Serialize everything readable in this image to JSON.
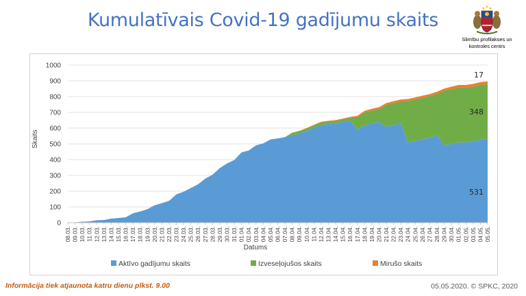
{
  "header": {
    "title": "Kumulatīvais Covid-19 gadījumu skaits",
    "logo_line1": "Slimību profilakses un",
    "logo_line2": "kontroles centrs"
  },
  "footer": {
    "note": "Informācija tiek atjaunota katru dienu plkst. 9.00",
    "credit": "05.05.2020. © SPKC, 2020"
  },
  "colors": {
    "active": "#5b9bd5",
    "recovered": "#70ad47",
    "deaths": "#ed7d31",
    "axis_text": "#404040",
    "title": "#4472c4"
  },
  "chart_data": {
    "type": "area",
    "stacked": true,
    "title": "",
    "xlabel": "Datums",
    "ylabel": "Skaits",
    "ylim": [
      0,
      1000
    ],
    "yticks": [
      0,
      100,
      200,
      300,
      400,
      500,
      600,
      700,
      800,
      900,
      1000
    ],
    "grid": true,
    "legend_position": "bottom",
    "categories": [
      "08.03.",
      "09.03.",
      "10.03.",
      "11.03.",
      "12.03.",
      "13.03.",
      "14.03.",
      "15.03.",
      "16.03.",
      "17.03.",
      "18.03.",
      "19.03.",
      "20.03.",
      "21.03.",
      "22.03.",
      "23.03.",
      "24.03.",
      "25.03.",
      "26.03.",
      "27.03.",
      "28.03.",
      "29.03.",
      "30.03.",
      "31.03.",
      "01.04.",
      "02.04.",
      "03.04.",
      "04.04.",
      "05.04.",
      "06.04.",
      "07.04.",
      "08.04.",
      "09.04.",
      "10.04.",
      "11.04.",
      "12.04.",
      "13.04.",
      "14.04.",
      "15.04.",
      "16.04.",
      "17.04.",
      "18.04.",
      "19.04.",
      "20.04.",
      "21.04.",
      "22.04.",
      "23.04.",
      "24.04.",
      "25.04.",
      "26.04.",
      "27.04.",
      "28.04.",
      "29.04.",
      "30.04.",
      "01.05.",
      "02.05.",
      "03.05.",
      "04.05.",
      "05.05."
    ],
    "series": [
      {
        "name": "Aktīvo gadījumu skaits",
        "values": [
          1,
          2,
          6,
          8,
          16,
          17,
          26,
          30,
          34,
          60,
          71,
          86,
          111,
          124,
          139,
          180,
          197,
          220,
          244,
          280,
          305,
          347,
          376,
          398,
          446,
          458,
          491,
          503,
          528,
          535,
          542,
          555,
          565,
          582,
          602,
          620,
          626,
          630,
          640,
          650,
          590,
          618,
          630,
          640,
          608,
          620,
          630,
          510,
          520,
          530,
          540,
          555,
          490,
          500,
          510,
          510,
          516,
          527,
          531
        ]
      },
      {
        "name": "Izveseļojušos skaits",
        "values": [
          0,
          0,
          0,
          0,
          0,
          0,
          0,
          0,
          0,
          0,
          0,
          0,
          0,
          0,
          0,
          0,
          0,
          0,
          0,
          0,
          0,
          0,
          0,
          0,
          0,
          0,
          0,
          0,
          0,
          0,
          1,
          16,
          16,
          16,
          16,
          16,
          16,
          16,
          16,
          16,
          80,
          82,
          82,
          82,
          140,
          140,
          140,
          263,
          263,
          263,
          263,
          263,
          348,
          348,
          348,
          348,
          348,
          348,
          348
        ]
      },
      {
        "name": "Mirušo skaits",
        "values": [
          0,
          0,
          0,
          0,
          0,
          0,
          0,
          0,
          0,
          0,
          0,
          0,
          0,
          0,
          0,
          0,
          0,
          0,
          0,
          0,
          0,
          0,
          0,
          0,
          0,
          0,
          0,
          0,
          0,
          0,
          0,
          0,
          2,
          3,
          3,
          5,
          5,
          5,
          5,
          5,
          8,
          10,
          11,
          11,
          11,
          11,
          12,
          12,
          12,
          13,
          13,
          13,
          13,
          15,
          16,
          16,
          17,
          17,
          17
        ]
      }
    ],
    "annotations": [
      {
        "series": "Mirušo skaits",
        "category": "05.05.",
        "text": "17"
      },
      {
        "series": "Izveseļojušos skaits",
        "category": "05.05.",
        "text": "348"
      },
      {
        "series": "Aktīvo gadījumu skaits",
        "category": "05.05.",
        "text": "531"
      }
    ]
  }
}
